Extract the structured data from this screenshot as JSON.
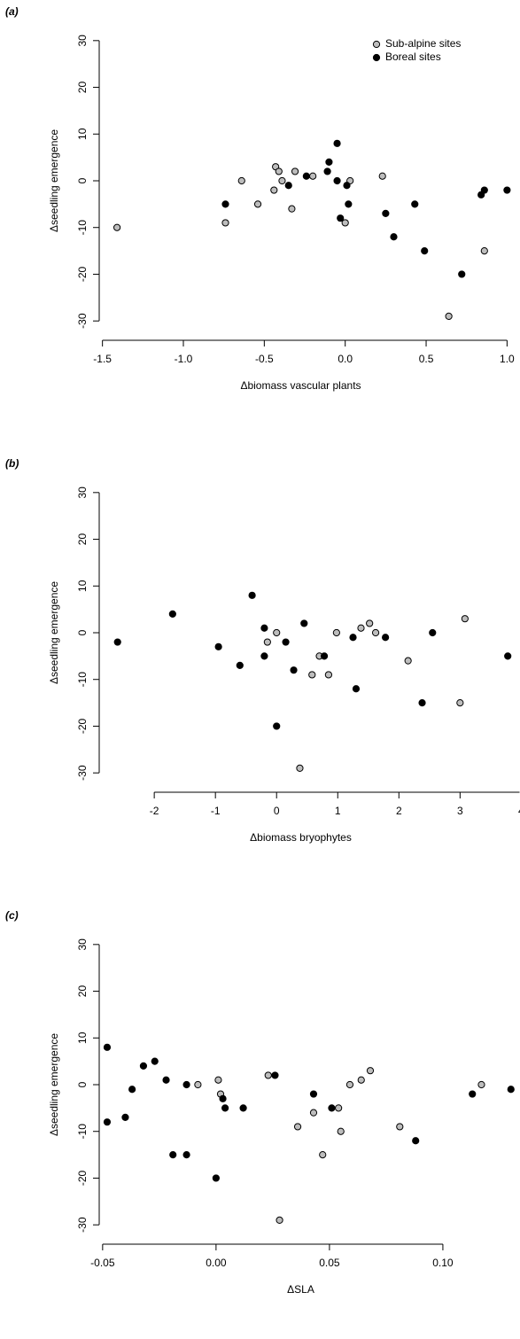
{
  "chart_data": [
    {
      "type": "scatter",
      "title": "(a)",
      "x_label": "Δbiomass vascular plants",
      "y_label": "Δseedling emergence",
      "xlim": [
        -1.52,
        1.08
      ],
      "ylim": [
        -33,
        33
      ],
      "xticks": [
        -1.5,
        {
          "value": -1.0,
          "label": "-1.0"
        },
        -0.5,
        {
          "value": 0.0,
          "label": "0.0"
        },
        0.5,
        {
          "value": 1.0,
          "label": "1.0"
        }
      ],
      "yticks": [
        -30,
        -20,
        -10,
        0,
        10,
        20,
        30
      ],
      "legend": "topright",
      "series": [
        {
          "name": "Sub-alpine sites",
          "color": "#bdbdbd",
          "x": [
            -1.41,
            -0.74,
            -0.64,
            -0.54,
            -0.44,
            -0.43,
            -0.41,
            -0.39,
            -0.33,
            -0.31,
            -0.2,
            0.0,
            0.03,
            0.23,
            0.64,
            0.86
          ],
          "values": [
            -10,
            -9,
            0,
            -5,
            -2,
            3,
            2,
            0,
            -6,
            2,
            1,
            -9,
            0,
            1,
            -29,
            -15
          ]
        },
        {
          "name": "Boreal sites",
          "color": "#000000",
          "x": [
            -0.74,
            -0.35,
            -0.24,
            -0.11,
            -0.1,
            -0.05,
            -0.05,
            -0.03,
            0.01,
            0.02,
            0.25,
            0.3,
            0.43,
            0.49,
            0.72,
            0.84,
            0.86,
            1.0
          ],
          "values": [
            -5,
            -1,
            1,
            2,
            4,
            8,
            0,
            -8,
            -1,
            -5,
            -7,
            -12,
            -5,
            -15,
            -20,
            -3,
            -2,
            -2
          ]
        }
      ]
    },
    {
      "type": "scatter",
      "title": "(b)",
      "x_label": "Δbiomass bryophytes",
      "y_label": "Δseedling emergence",
      "xlim": [
        -2.9,
        3.98
      ],
      "ylim": [
        -33,
        33
      ],
      "xticks": [
        -2,
        -1,
        0,
        1,
        2,
        3,
        4
      ],
      "yticks": [
        -30,
        -20,
        -10,
        0,
        10,
        20,
        30
      ],
      "series": [
        {
          "name": "Sub-alpine sites",
          "color": "#bdbdbd",
          "x": [
            -0.15,
            0.0,
            0.38,
            0.58,
            0.7,
            0.85,
            0.98,
            1.38,
            1.52,
            1.62,
            2.15,
            3.0,
            3.08
          ],
          "values": [
            -2,
            0,
            -29,
            -9,
            -5,
            -9,
            0,
            1,
            2,
            0,
            -6,
            -15,
            3
          ]
        },
        {
          "name": "Boreal sites",
          "color": "#000000",
          "x": [
            -2.6,
            -1.7,
            -0.95,
            -0.6,
            -0.4,
            -0.2,
            -0.2,
            0.0,
            0.15,
            0.28,
            0.45,
            0.78,
            1.25,
            1.3,
            1.78,
            2.38,
            2.55,
            3.78
          ],
          "values": [
            -2,
            4,
            -3,
            -7,
            8,
            1,
            -5,
            -20,
            -2,
            -8,
            2,
            -5,
            -1,
            -12,
            -1,
            -15,
            0,
            -5
          ]
        }
      ]
    },
    {
      "type": "scatter",
      "title": "(c)",
      "x_label": "ΔSLA",
      "y_label": "Δseedling emergence",
      "xlim": [
        -0.0515,
        0.134
      ],
      "ylim": [
        -33,
        33
      ],
      "xticks": [
        -0.05,
        {
          "value": 0.0,
          "label": "0.00"
        },
        0.05,
        {
          "value": 0.1,
          "label": "0.10"
        }
      ],
      "yticks": [
        -30,
        -20,
        -10,
        0,
        10,
        20,
        30
      ],
      "series": [
        {
          "name": "Sub-alpine sites",
          "color": "#bdbdbd",
          "x": [
            -0.008,
            0.001,
            0.002,
            0.023,
            0.028,
            0.036,
            0.043,
            0.047,
            0.054,
            0.055,
            0.059,
            0.064,
            0.068,
            0.081,
            0.117
          ],
          "values": [
            0,
            1,
            -2,
            2,
            -29,
            -9,
            -6,
            -15,
            -5,
            -10,
            0,
            1,
            3,
            -9,
            0
          ]
        },
        {
          "name": "Boreal sites",
          "color": "#000000",
          "x": [
            -0.048,
            -0.048,
            -0.04,
            -0.037,
            -0.032,
            -0.027,
            -0.022,
            -0.019,
            -0.013,
            -0.013,
            0.0,
            0.003,
            0.004,
            0.012,
            0.026,
            0.043,
            0.051,
            0.088,
            0.113,
            0.13
          ],
          "values": [
            8,
            -8,
            -7,
            -1,
            4,
            5,
            1,
            -15,
            0,
            -15,
            -20,
            -3,
            -5,
            -5,
            2,
            -2,
            -5,
            -12,
            -2,
            -1
          ]
        }
      ]
    }
  ]
}
